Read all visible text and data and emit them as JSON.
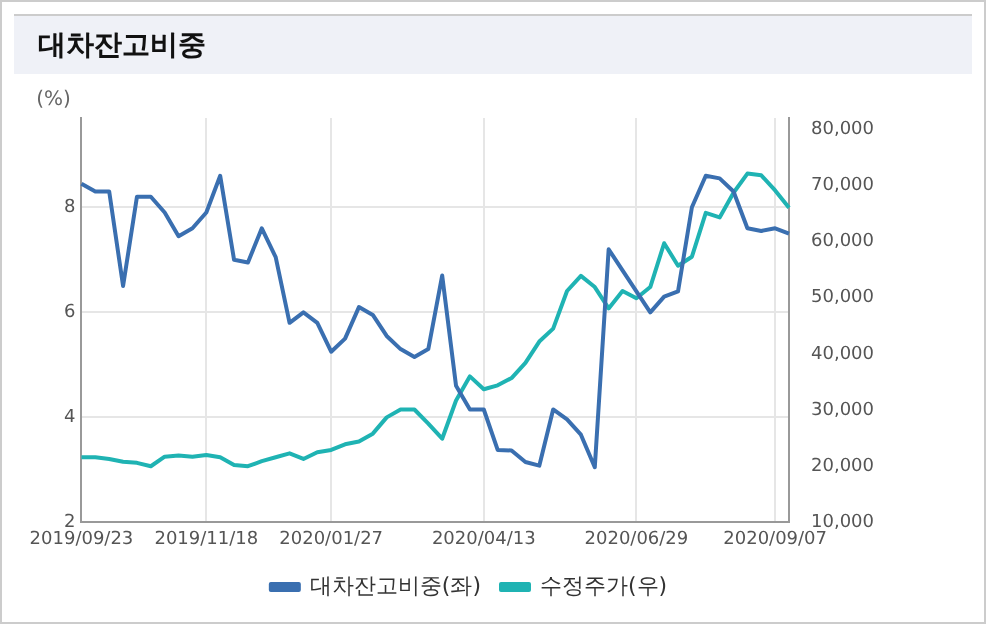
{
  "chart_data": {
    "type": "line",
    "title": "대차잔고비중",
    "ylabel": "(%)",
    "categories": [
      "2019/09/23",
      null,
      null,
      null,
      null,
      null,
      null,
      null,
      null,
      "2019/11/18",
      null,
      null,
      null,
      null,
      null,
      null,
      null,
      null,
      "2020/01/27",
      null,
      null,
      null,
      null,
      null,
      null,
      null,
      null,
      null,
      null,
      "2020/04/13",
      null,
      null,
      null,
      null,
      null,
      null,
      null,
      null,
      null,
      null,
      "2020/06/29",
      null,
      null,
      null,
      null,
      null,
      null,
      null,
      null,
      null,
      "2020/09/07",
      null
    ],
    "series": [
      {
        "name": "대차잔고비중(좌)",
        "color": "#3a6fb0",
        "values": [
          8.45,
          8.3,
          8.3,
          6.5,
          8.2,
          8.2,
          7.9,
          7.45,
          7.6,
          7.9,
          8.6,
          7.0,
          6.95,
          7.6,
          7.05,
          5.8,
          6.0,
          5.8,
          5.25,
          5.5,
          6.1,
          5.95,
          5.55,
          5.3,
          5.15,
          5.3,
          6.7,
          4.6,
          4.15,
          4.15,
          3.38,
          3.37,
          3.15,
          3.08,
          4.15,
          3.96,
          3.67,
          3.05,
          7.2,
          6.8,
          6.4,
          6.0,
          6.3,
          6.4,
          8.0,
          8.6,
          8.55,
          8.3,
          7.6,
          7.55,
          7.6,
          7.5
        ]
      },
      {
        "name": "수정주가(우)",
        "color": "#1fb3b3",
        "axis": "y2",
        "values": [
          21600,
          21600,
          21300,
          20800,
          20600,
          20000,
          21700,
          21900,
          21700,
          22000,
          21600,
          20200,
          20000,
          20900,
          21600,
          22300,
          21300,
          22500,
          22900,
          23900,
          24400,
          25800,
          28700,
          30100,
          30100,
          27600,
          24900,
          31700,
          36000,
          33700,
          34400,
          35700,
          38400,
          42200,
          44500,
          51200,
          53900,
          51900,
          48100,
          51200,
          49900,
          51900,
          59700,
          55700,
          57300,
          65100,
          64300,
          68700,
          72100,
          71800,
          69100,
          66000
        ]
      }
    ],
    "ylim": [
      2,
      9.7
    ],
    "yticks": [
      2,
      4,
      6,
      8
    ],
    "y2lim": [
      10000,
      82000
    ],
    "y2ticks": [
      {
        "value": 10000,
        "label": "10,000"
      },
      {
        "value": 20000,
        "label": "20,000"
      },
      {
        "value": 30000,
        "label": "30,000"
      },
      {
        "value": 40000,
        "label": "40,000"
      },
      {
        "value": 50000,
        "label": "50,000"
      },
      {
        "value": 60000,
        "label": "60,000"
      },
      {
        "value": 70000,
        "label": "70,000"
      },
      {
        "value": 80000,
        "label": "80,000"
      }
    ],
    "grid": true,
    "legend": "bottom",
    "marker": "none"
  }
}
